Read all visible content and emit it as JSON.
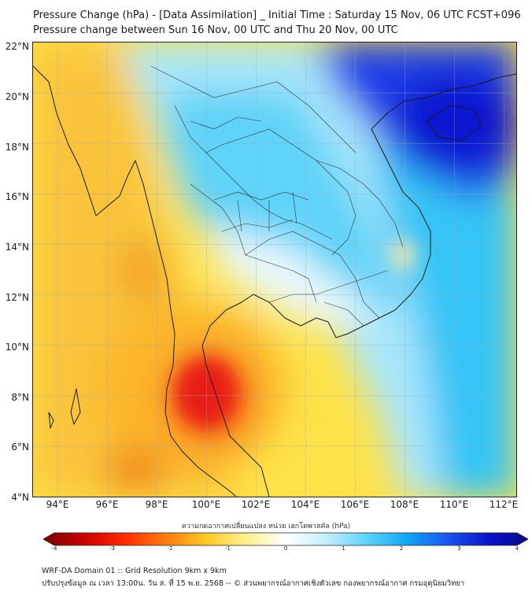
{
  "header": {
    "title_line1": "Pressure Change (hPa) - [Data Assimilation] _ Initial Time : Saturday 15 Nov, 06 UTC FCST+096",
    "title_line2": "Pressure change between Sun 16 Nov, 00 UTC and Thu 20 Nov, 00 UTC"
  },
  "map": {
    "lat_labels": [
      "22°N",
      "20°N",
      "18°N",
      "16°N",
      "14°N",
      "12°N",
      "10°N",
      "8°N",
      "6°N",
      "4°N"
    ],
    "lon_labels": [
      "94°E",
      "96°E",
      "98°E",
      "100°E",
      "102°E",
      "104°E",
      "106°E",
      "108°E",
      "110°E",
      "112°E"
    ],
    "lat_range": [
      4,
      22
    ],
    "lon_range": [
      93,
      112.5
    ],
    "gridlines": true,
    "coastline_color": "#222222",
    "field_regions": [
      {
        "level": -3.2,
        "desc": "strong negative",
        "color": "#e01414"
      },
      {
        "level": -1.4,
        "desc": "negative",
        "color": "#f6a11e"
      },
      {
        "level": -0.8,
        "desc": "weak negative",
        "color": "#fcd743"
      },
      {
        "level": 0.6,
        "desc": "weak positive",
        "color": "#c8f0fb"
      },
      {
        "level": 1.8,
        "desc": "positive",
        "color": "#1ec8f5"
      },
      {
        "level": 3.6,
        "desc": "strong positive",
        "color": "#0a20e0"
      }
    ]
  },
  "colorbar": {
    "title": "ความกดอากาศเปลี่ยนแปลง หน่วย เฮกโตพาสคัล (hPa)",
    "min": -4,
    "max": 4,
    "tick_labels": [
      "-4",
      "-3",
      "-2",
      "-1",
      "0",
      "1",
      "2",
      "3",
      "4"
    ],
    "stops": [
      "#7a0000",
      "#c80000",
      "#ff2a00",
      "#ff7a10",
      "#ffc626",
      "#fff08a",
      "#ffffff",
      "#c4eefb",
      "#5fd3fb",
      "#12a6f2",
      "#1a55ee",
      "#0a14c8",
      "#08088a"
    ]
  },
  "footer": {
    "line1": "WRF-DA Domain 01 :: Grid Resolution 9km x 9km",
    "line2": "ปรับปรุงข้อมูล ณ เวลา 13:00น. วัน ส. ที่ 15 พ.ย. 2568 -- © ส่วนพยากรณ์อากาศเชิงตัวเลข กองพยากรณ์อากาศ กรมอุตุนิยมวิทยา"
  }
}
